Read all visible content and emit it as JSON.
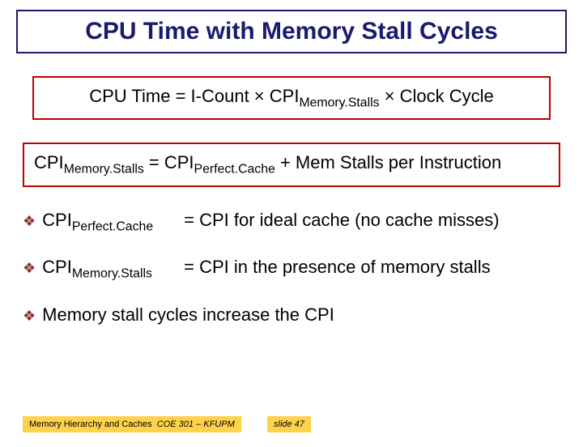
{
  "title": "CPU Time with Memory Stall Cycles",
  "formula1": {
    "pre": "CPU Time = I-Count × CPI",
    "sub": "Memory.Stalls",
    "post": " × Clock Cycle"
  },
  "formula2": {
    "a_pre": "CPI",
    "a_sub": "Memory.Stalls",
    "mid": " = CPI",
    "b_sub": "Perfect.Cache",
    "post": " + Mem Stalls per Instruction"
  },
  "bullets": {
    "b1_term_pre": "CPI",
    "b1_term_sub": "Perfect.Cache",
    "b1_def": "=  CPI for ideal cache (no cache misses)",
    "b2_term_pre": "CPI",
    "b2_term_sub": "Memory.Stalls",
    "b2_def": "=  CPI in the presence of memory stalls",
    "b3": "Memory stall cycles increase the CPI"
  },
  "footer": {
    "topic": "Memory Hierarchy and Caches",
    "course": "COE 301 – KFUPM",
    "slide": "slide 47"
  },
  "colors": {
    "title_border": "#1a1a6e",
    "formula_border": "#c00000",
    "diamond": "#8a2f2f",
    "highlight": "#ffd24a"
  }
}
